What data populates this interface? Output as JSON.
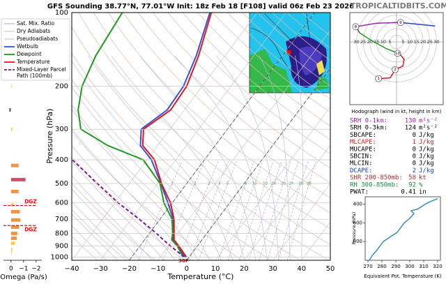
{
  "site": "TROPICALTIDBITS.COM",
  "chart_data": [
    {
      "type": "skewt",
      "title": "GFS Sounding 38.77°N, 77.01°W Init: 18z Feb 18 [F108] valid 06z Feb 23 2026",
      "x_label": "Temperature (°C)",
      "y_label": "Pressure (hPa)",
      "xlim": [
        -40,
        50
      ],
      "xticks": [
        {
          "value": -40,
          "label": "−40"
        },
        {
          "value": -30,
          "label": "−30"
        },
        {
          "value": -20,
          "label": "−20"
        },
        {
          "value": -10,
          "label": "−10"
        },
        0,
        10,
        20,
        30,
        40,
        50
      ],
      "ylim": [
        1030,
        100
      ],
      "log_y": true,
      "yticks": [
        100,
        200,
        300,
        400,
        500,
        600,
        700,
        800,
        900,
        1000
      ],
      "x": [
        1000,
        900,
        850,
        800,
        700,
        600,
        500,
        400,
        350,
        300,
        250,
        200,
        150,
        100
      ],
      "background_lines": [
        {
          "name": "Sat. Mix. Ratio",
          "color": "#b9a6cf"
        },
        {
          "name": "Dry Adiabats",
          "color": "#e2b8b0"
        },
        {
          "name": "Pseudoadiabats",
          "color": "#b7bfe6"
        }
      ],
      "series": [
        {
          "name": "Wetbulb",
          "color": "#3651d4",
          "values": [
            -1.5,
            -6.8,
            -10.1,
            -11.6,
            -15.4,
            -21.5,
            -29,
            -38.5,
            -46,
            -50,
            -46,
            -46.5,
            -50,
            -56.5
          ]
        },
        {
          "name": "Dewpoint",
          "color": "#1e9a1e",
          "values": [
            -2.1,
            -7,
            -10.5,
            -11.9,
            -15.8,
            -22.9,
            -29.3,
            -41.3,
            -57.3,
            -71,
            -77,
            -81.8,
            -85,
            -87
          ]
        },
        {
          "name": "Temperature",
          "color": "#e3141c",
          "values": [
            -0.9,
            -6.5,
            -9.7,
            -11.4,
            -15.1,
            -20.6,
            -28.8,
            -37.4,
            -45.2,
            -49.2,
            -44.8,
            -45.4,
            -49.2,
            -56
          ]
        },
        {
          "name": "Mixed-Layer Parcel Path (100mb)",
          "color": "#7a1a8a",
          "dash": true,
          "values": [
            -1.6,
            -9.4,
            -13.4,
            -17.5,
            -27.2,
            -38.8,
            -51.1,
            -66,
            null,
            null,
            null,
            null,
            null,
            null
          ]
        }
      ],
      "mixing_ratios": [
        1,
        2,
        3,
        4,
        5,
        8,
        10,
        13,
        16,
        20,
        24,
        30,
        36
      ],
      "highlight_isotherms": [
        0,
        -20
      ],
      "surface_label": "30F",
      "grid": true
    },
    {
      "type": "omega",
      "x_label": "Omega (Pa/s)",
      "xlim": [
        0.6,
        -2.45
      ],
      "xticks": [
        0,
        {
          "value": -1,
          "label": "−1"
        },
        {
          "value": -2,
          "label": "−2"
        }
      ],
      "ylim": [
        1030,
        100
      ],
      "log_y": true,
      "y": [
        200,
        250,
        300,
        422,
        482,
        539,
        610,
        652,
        705,
        754,
        800,
        837,
        877,
        930,
        961
      ],
      "values": [
        -0.05,
        0.15,
        -0.1,
        -0.6,
        -1.15,
        -0.6,
        -0.2,
        -0.7,
        -0.75,
        -0.65,
        -0.5,
        -0.45,
        -0.3,
        -0.1,
        -0.05
      ],
      "colors": [
        "#f5d142",
        "#777777",
        "#f5d142",
        "#ee9448",
        "#d2506a",
        "#ee9448",
        "#f5d142",
        "#ee9448",
        "#ee9448",
        "#ee9448",
        "#ee9448",
        "#ee9448",
        "#f5d142",
        "#f5d142",
        "#f5d142"
      ],
      "dgz_levels": [
        615,
        743
      ],
      "dgz_label": "DGZ",
      "dgz_color": "#e01010"
    },
    {
      "type": "hodograph",
      "caption": "Hodograph (wind in kt, height in km)",
      "xlim": [
        -35,
        35
      ],
      "ylim": [
        -47,
        22
      ],
      "ticks": [
        {
          "value": -30,
          "label": "30"
        },
        {
          "value": -25,
          "label": "25"
        },
        {
          "value": -20,
          "label": "20"
        },
        {
          "value": -15,
          "label": "15"
        },
        {
          "value": -10,
          "label": "10"
        },
        {
          "value": -5,
          "label": "5"
        },
        5,
        10,
        15,
        20,
        25,
        30
      ],
      "series": [
        {
          "color": "#e3141c",
          "u": [
            -13.5,
            -4.7,
            -1,
            4.7,
            5.7,
            2.6,
            -0.5
          ],
          "v": [
            -27.5,
            -26.9,
            -20.7,
            -18.1,
            -13,
            -9.3,
            -7.8
          ]
        },
        {
          "color": "#1e9a1e",
          "u": [
            -0.5,
            -7.3,
            -15,
            -21.2,
            -27.5
          ],
          "v": [
            -7.8,
            -5.2,
            -1,
            2.6,
            6.7
          ]
        },
        {
          "color": "#9b26b0",
          "u": [
            -27.5,
            -30.6,
            -15,
            3.1
          ],
          "v": [
            6.7,
            11.4,
            14,
            14.5
          ]
        },
        {
          "color": "#2a3fd0",
          "u": [
            3.1,
            29
          ],
          "v": [
            14.5,
            11.9
          ]
        }
      ],
      "markers": [
        {
          "label": "1",
          "u": -13.5,
          "v": -27.5
        },
        {
          "label": "2",
          "u": -1,
          "v": -20.7
        },
        {
          "label": "10",
          "u": 0.8,
          "v": -8.5
        },
        {
          "label": "8",
          "u": -30.6,
          "v": 11.4
        },
        {
          "label": "9",
          "u": 3.1,
          "v": 14.5
        }
      ]
    },
    {
      "type": "line",
      "x_label": "Equivalent Pot. Temperature (K)",
      "y_label": "Pressure (hPa)",
      "xlim": [
        268,
        322
      ],
      "xticks": [
        270,
        280,
        290,
        300,
        310,
        320
      ],
      "ylim": [
        1000,
        320
      ],
      "yticks": [
        400,
        600,
        800
      ],
      "color": "#3a8fb7",
      "x": [
        271,
        273,
        276,
        281,
        286,
        291,
        296,
        300,
        303,
        301,
        306,
        311,
        315,
        320
      ],
      "values": [
        1000,
        950,
        900,
        800,
        750,
        700,
        600,
        550,
        500,
        470,
        450,
        400,
        370,
        340
      ]
    }
  ],
  "indices": [
    {
      "label": "SRH 0-1km:",
      "value": 130,
      "unit": "m²s⁻²",
      "color": "#a020a0"
    },
    {
      "label": "SRH 0-3km:",
      "value": 124,
      "unit": "m²s⁻²",
      "color": "#000000"
    },
    {
      "label": "SBCAPE:",
      "value": 0,
      "unit": "J/kg",
      "color": "#000000"
    },
    {
      "label": "MLCAPE:",
      "value": 1,
      "unit": "J/kg",
      "color": "#d62020"
    },
    {
      "label": "MUCAPE:",
      "value": 0,
      "unit": "J/kg",
      "color": "#000000"
    },
    {
      "label": "SBCIN:",
      "value": 0,
      "unit": "J/kg",
      "color": "#000000"
    },
    {
      "label": "MLCIN:",
      "value": 0,
      "unit": "J/kg",
      "color": "#000000"
    },
    {
      "label": "DCAPE:",
      "value": 2,
      "unit": "J/kg",
      "color": "#2040c0"
    },
    {
      "label": "SHR 200-850mb:",
      "value": 58,
      "unit": "kt",
      "color": "#b03030"
    },
    {
      "label": "RH 300-850mb:",
      "value": 92,
      "unit": "%",
      "color": "#108a40"
    },
    {
      "label": "PWAT:",
      "value": 0.41,
      "unit": "in",
      "color": "#000000"
    }
  ]
}
